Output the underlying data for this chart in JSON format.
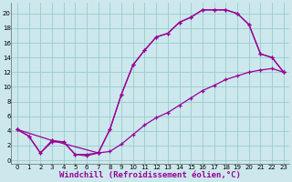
{
  "bg_color": "#cce8ec",
  "grid_color": "#99cccc",
  "line_color": "#990099",
  "marker": "+",
  "xlabel": "Windchill (Refroidissement éolien,°C)",
  "xlabel_fontsize": 6.5,
  "xlim": [
    -0.5,
    23.5
  ],
  "ylim": [
    -0.5,
    21.5
  ],
  "xticks": [
    0,
    1,
    2,
    3,
    4,
    5,
    6,
    7,
    8,
    9,
    10,
    11,
    12,
    13,
    14,
    15,
    16,
    17,
    18,
    19,
    20,
    21,
    22,
    23
  ],
  "yticks": [
    0,
    2,
    4,
    6,
    8,
    10,
    12,
    14,
    16,
    18,
    20
  ],
  "line1_x": [
    0,
    1,
    2,
    3,
    4,
    5,
    6,
    7,
    8,
    9,
    10,
    11,
    12,
    13,
    14,
    15,
    16,
    17,
    18,
    19,
    20,
    21,
    22,
    23
  ],
  "line1_y": [
    4.2,
    3.3,
    1.0,
    2.7,
    2.5,
    0.8,
    0.8,
    1.0,
    4.2,
    9.0,
    13.0,
    15.0,
    16.8,
    17.3,
    18.8,
    19.5,
    20.5,
    20.5,
    20.5,
    20.0,
    18.5,
    14.5,
    14.0,
    12.0
  ],
  "line2_x": [
    0,
    3,
    7,
    8,
    9,
    10,
    11,
    12,
    13,
    14,
    15,
    16,
    17,
    18,
    19,
    20,
    21,
    22,
    23
  ],
  "line2_y": [
    4.2,
    2.7,
    1.0,
    4.2,
    9.0,
    13.0,
    15.0,
    16.8,
    17.3,
    18.8,
    19.5,
    20.5,
    20.5,
    20.5,
    20.0,
    18.5,
    14.5,
    14.0,
    12.0
  ],
  "line3_x": [
    0,
    1,
    2,
    3,
    4,
    5,
    6,
    7,
    8,
    9,
    10,
    11,
    12,
    13,
    14,
    15,
    16,
    17,
    18,
    19,
    20,
    21,
    22,
    23
  ],
  "line3_y": [
    4.2,
    3.3,
    1.0,
    2.5,
    2.5,
    0.8,
    0.6,
    1.0,
    1.2,
    2.2,
    3.5,
    4.8,
    5.8,
    6.5,
    7.5,
    8.5,
    9.5,
    10.2,
    11.0,
    11.5,
    12.0,
    12.3,
    12.5,
    12.0
  ]
}
